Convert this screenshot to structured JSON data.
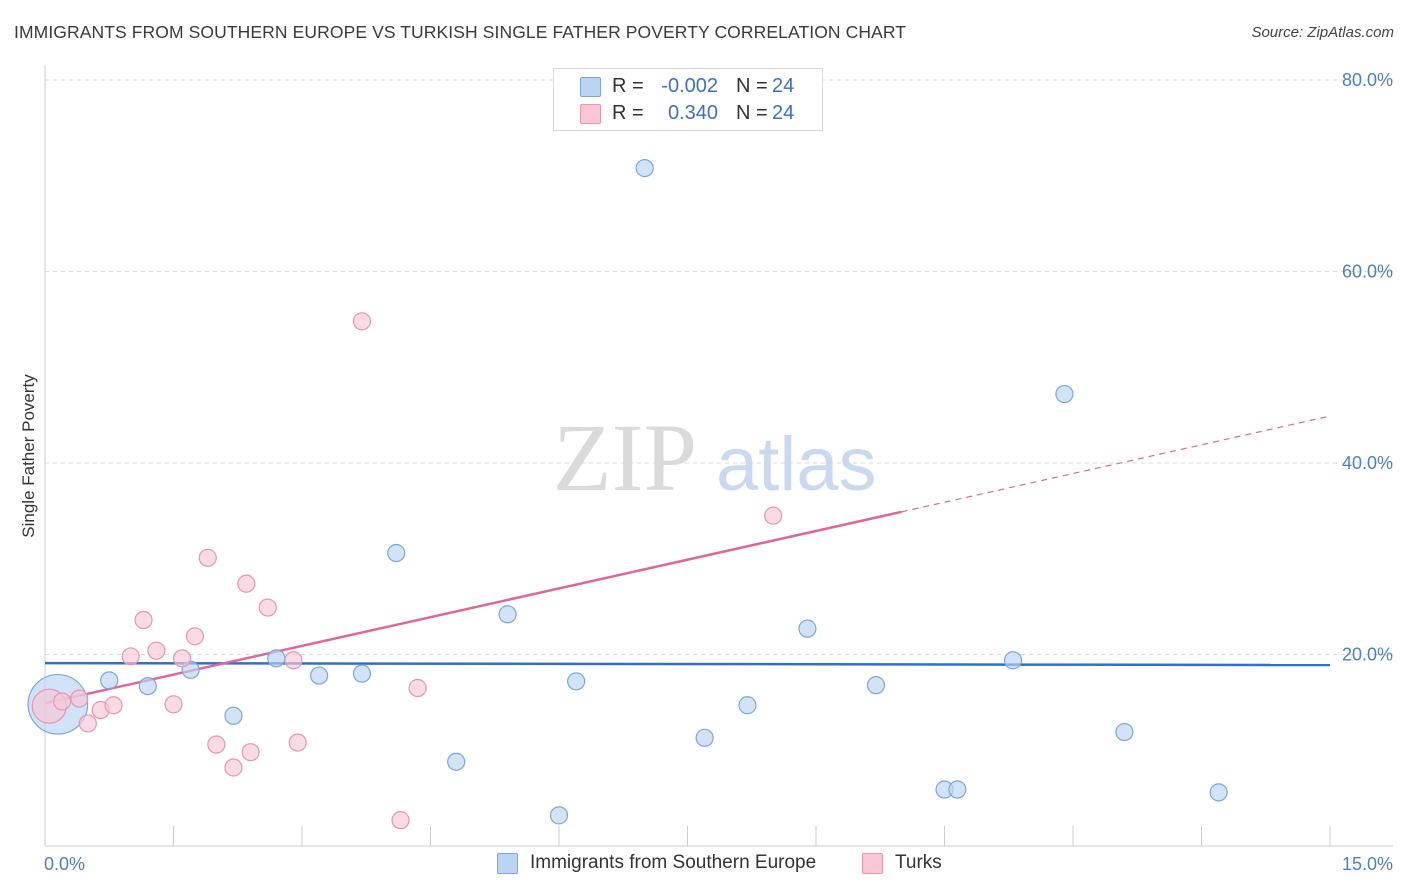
{
  "header": {
    "title": "IMMIGRANTS FROM SOUTHERN EUROPE VS TURKISH SINGLE FATHER POVERTY CORRELATION CHART",
    "source": "Source: ZipAtlas.com"
  },
  "watermark": {
    "zip": "ZIP",
    "atlas": "atlas"
  },
  "legend": {
    "rows": [
      {
        "r_label": "R =",
        "r_value": "-0.002",
        "n_label": "N =",
        "n_value": "24"
      },
      {
        "r_label": "R =",
        "r_value": "0.340",
        "n_label": "N =",
        "n_value": "24"
      }
    ]
  },
  "colors": {
    "blue_fill": "#bcd4f3",
    "blue_stroke": "#7aa6e0",
    "blue_line": "#2f6fd1",
    "pink_fill": "#f8c6d5",
    "pink_stroke": "#ea94b0",
    "pink_line": "#e0669a",
    "tick_text": "#4a7fcf",
    "grid": "#d9d9d9"
  },
  "chart_data": {
    "type": "scatter",
    "title": "IMMIGRANTS FROM SOUTHERN EUROPE VS TURKISH SINGLE FATHER POVERTY CORRELATION CHART",
    "xlabel": "",
    "ylabel": "Single Father Poverty",
    "xlim": [
      0,
      15
    ],
    "ylim": [
      0,
      80
    ],
    "x_tick_labels": [
      "0.0%",
      "15.0%"
    ],
    "y_ticks": [
      20,
      40,
      60,
      80
    ],
    "y_tick_labels": [
      "20.0%",
      "40.0%",
      "60.0%",
      "80.0%"
    ],
    "legend_position": "top-center",
    "series": [
      {
        "name": "Immigrants from Southern Europe",
        "color": "blue",
        "R": -0.002,
        "N": 24,
        "trend": {
          "x0": 0,
          "y0": 19.1,
          "x1": 15,
          "y1": 18.9,
          "solid_until": 15
        },
        "points": [
          [
            0.15,
            14.8,
            3.5
          ],
          [
            0.75,
            17.3,
            1
          ],
          [
            1.2,
            16.7,
            1
          ],
          [
            1.7,
            18.4,
            1
          ],
          [
            2.2,
            13.6,
            1
          ],
          [
            2.7,
            19.6,
            1
          ],
          [
            3.2,
            17.8,
            1
          ],
          [
            3.7,
            18.0,
            1
          ],
          [
            4.1,
            30.6,
            1
          ],
          [
            4.8,
            8.8,
            1
          ],
          [
            5.4,
            24.2,
            1
          ],
          [
            6.0,
            3.2,
            1
          ],
          [
            6.2,
            17.2,
            1
          ],
          [
            7.0,
            70.8,
            1
          ],
          [
            7.7,
            11.3,
            1
          ],
          [
            8.2,
            14.7,
            1
          ],
          [
            8.9,
            22.7,
            1
          ],
          [
            9.7,
            16.8,
            1
          ],
          [
            10.5,
            5.9,
            1
          ],
          [
            10.65,
            5.9,
            1
          ],
          [
            11.3,
            19.4,
            1
          ],
          [
            11.9,
            47.2,
            1
          ],
          [
            12.6,
            11.9,
            1
          ],
          [
            13.7,
            5.6,
            1
          ]
        ]
      },
      {
        "name": "Turks",
        "color": "pink",
        "R": 0.34,
        "N": 24,
        "trend": {
          "x0": 0,
          "y0": 14.9,
          "x1": 15,
          "y1": 44.9,
          "solid_until": 10
        },
        "points": [
          [
            0.05,
            14.6,
            2
          ],
          [
            0.2,
            15.1,
            1
          ],
          [
            0.4,
            15.4,
            1
          ],
          [
            0.5,
            12.8,
            1
          ],
          [
            0.65,
            14.2,
            1
          ],
          [
            0.8,
            14.7,
            1
          ],
          [
            1.0,
            19.8,
            1
          ],
          [
            1.15,
            23.6,
            1
          ],
          [
            1.3,
            20.4,
            1
          ],
          [
            1.5,
            14.8,
            1
          ],
          [
            1.6,
            19.6,
            1
          ],
          [
            1.75,
            21.9,
            1
          ],
          [
            1.9,
            30.1,
            1
          ],
          [
            2.0,
            10.6,
            1
          ],
          [
            2.2,
            8.2,
            1
          ],
          [
            2.35,
            27.4,
            1
          ],
          [
            2.4,
            9.8,
            1
          ],
          [
            2.6,
            24.9,
            1
          ],
          [
            2.9,
            19.4,
            1
          ],
          [
            2.95,
            10.8,
            1
          ],
          [
            3.7,
            54.8,
            1
          ],
          [
            4.15,
            2.7,
            1
          ],
          [
            4.35,
            16.5,
            1
          ],
          [
            8.5,
            34.5,
            1
          ]
        ]
      }
    ]
  },
  "bottom_legend": {
    "series1": "Immigrants from Southern Europe",
    "series2": "Turks"
  }
}
